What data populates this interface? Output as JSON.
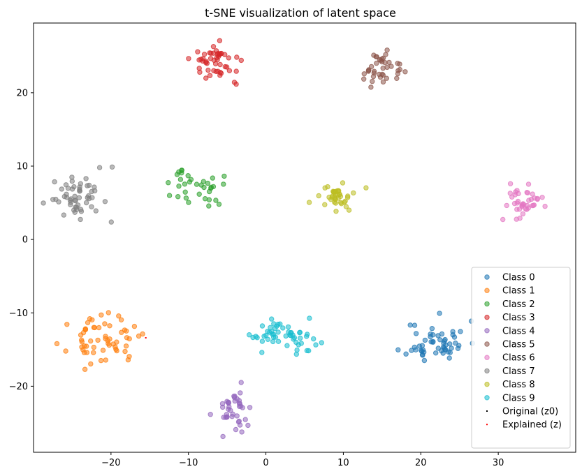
{
  "chart_data": {
    "type": "scatter",
    "title": "t-SNE visualization of latent space",
    "xlabel": "",
    "ylabel": "",
    "xlim": [
      -30,
      40
    ],
    "ylim": [
      -29,
      29.5
    ],
    "xticks": [
      -20,
      -10,
      0,
      10,
      20,
      30
    ],
    "yticks": [
      -20,
      -10,
      0,
      10,
      20
    ],
    "xtick_labels": [
      "−20",
      "−10",
      "0",
      "10",
      "20",
      "30"
    ],
    "ytick_labels": [
      "−20",
      "−10",
      "0",
      "10",
      "20"
    ],
    "grid": false,
    "legend_position": "lower-right",
    "colors": [
      "#1f77b4",
      "#ff7f0e",
      "#2ca02c",
      "#d62728",
      "#9467bd",
      "#8c564b",
      "#e377c2",
      "#7f7f7f",
      "#bcbd22",
      "#17becf"
    ],
    "clusters": [
      {
        "name": "Class 0",
        "center": [
          22.0,
          -14.0
        ],
        "spread": [
          2.3,
          1.7
        ],
        "count": 55,
        "seed": 11
      },
      {
        "name": "Class 1",
        "center": [
          -21.0,
          -13.8
        ],
        "spread": [
          2.6,
          1.8
        ],
        "count": 60,
        "seed": 23
      },
      {
        "name": "Class 2",
        "center": [
          -9.0,
          7.0
        ],
        "spread": [
          2.0,
          1.5
        ],
        "count": 35,
        "seed": 37
      },
      {
        "name": "Class 3",
        "center": [
          -6.0,
          24.2
        ],
        "spread": [
          2.0,
          1.4
        ],
        "count": 50,
        "seed": 41
      },
      {
        "name": "Class 4",
        "center": [
          -4.0,
          -23.0
        ],
        "spread": [
          1.4,
          1.9
        ],
        "count": 40,
        "seed": 53
      },
      {
        "name": "Class 5",
        "center": [
          15.0,
          23.0
        ],
        "spread": [
          1.6,
          1.3
        ],
        "count": 40,
        "seed": 67
      },
      {
        "name": "Class 6",
        "center": [
          33.5,
          5.0
        ],
        "spread": [
          1.6,
          1.3
        ],
        "count": 40,
        "seed": 71
      },
      {
        "name": "Class 7",
        "center": [
          -24.0,
          5.8
        ],
        "spread": [
          2.0,
          1.9
        ],
        "count": 55,
        "seed": 83
      },
      {
        "name": "Class 8",
        "center": [
          8.5,
          5.8
        ],
        "spread": [
          1.7,
          1.1
        ],
        "count": 40,
        "seed": 97
      },
      {
        "name": "Class 9",
        "center": [
          2.0,
          -13.0
        ],
        "spread": [
          2.6,
          1.3
        ],
        "count": 55,
        "seed": 101
      }
    ],
    "special_points": [
      {
        "name": "Original (z0)",
        "color": "#000000",
        "points": []
      },
      {
        "name": "Explained (z)",
        "color": "#ff0000",
        "points": [
          [
            -15.5,
            -13.4
          ]
        ]
      }
    ],
    "legend": [
      "Class 0",
      "Class 1",
      "Class 2",
      "Class 3",
      "Class 4",
      "Class 5",
      "Class 6",
      "Class 7",
      "Class 8",
      "Class 9",
      "Original (z0)",
      "Explained (z)"
    ]
  }
}
